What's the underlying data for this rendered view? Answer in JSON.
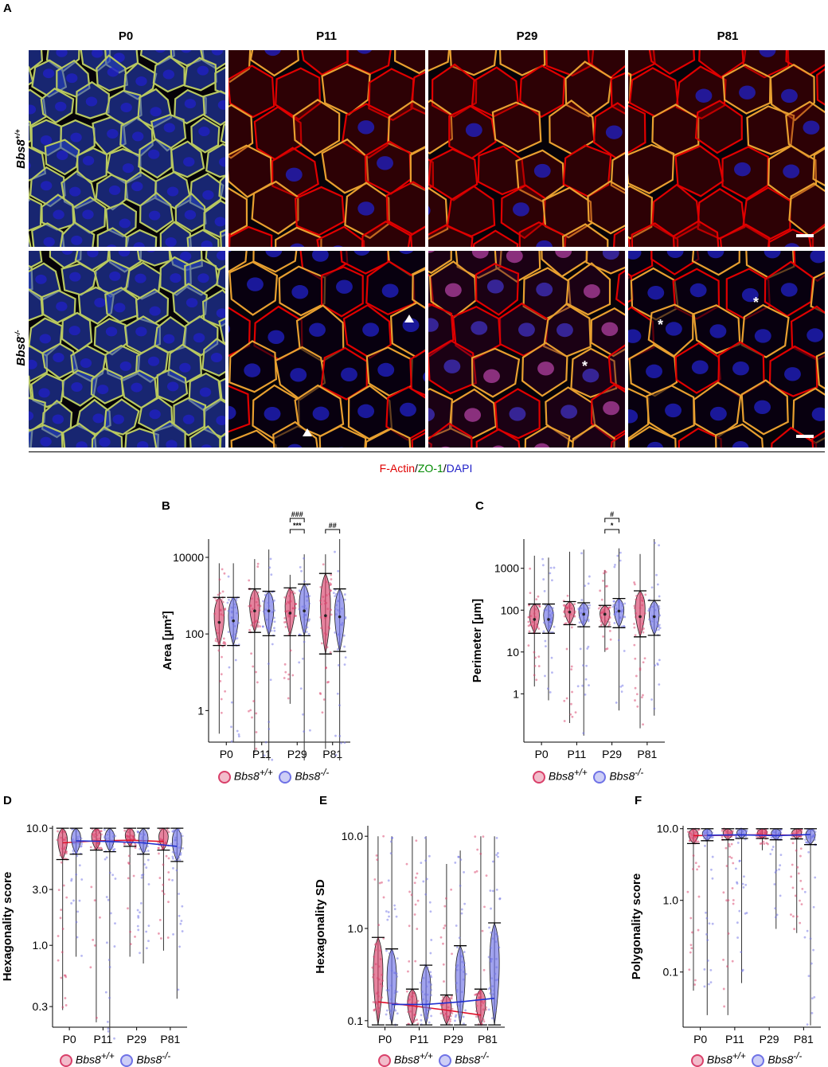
{
  "panel_a": {
    "letter": "A",
    "columns": [
      "P0",
      "P11",
      "P29",
      "P81"
    ],
    "rows": [
      {
        "base": "Bbs8",
        "sup": "+/+"
      },
      {
        "base": "Bbs8",
        "sup": "-/-"
      }
    ],
    "stain": {
      "part1": "F-Actin",
      "sep1": "/",
      "part2": "ZO-1",
      "sep2": "/",
      "part3": "DAPI"
    },
    "markers": {
      "arrowhead": "arrowhead-marker",
      "asterisk": "*"
    },
    "colors": {
      "factin": "#e00000",
      "zo1": "#008a00",
      "dapi": "#2020c8"
    }
  },
  "legend": {
    "wt": {
      "base": "Bbs8",
      "sup": "+/+",
      "color": "#d9406a"
    },
    "ko": {
      "base": "Bbs8",
      "sup": "-/-",
      "color": "#6f72e6"
    }
  },
  "chart_data": [
    {
      "panel": "B",
      "type": "violin",
      "ylabel": "Area [µm²]",
      "yscale": "log",
      "ylim": [
        0.15,
        30000
      ],
      "ytick_values": [
        1,
        100,
        10000
      ],
      "ytick_labels": [
        "1",
        "100",
        "10000"
      ],
      "categories": [
        "P0",
        "P11",
        "P29",
        "P81"
      ],
      "series": [
        {
          "name": "Bbs8+/+",
          "median": [
            200,
            400,
            350,
            300
          ],
          "q_low": [
            50,
            110,
            90,
            30
          ],
          "q_high": [
            900,
            1500,
            1600,
            3800
          ],
          "min": [
            0.25,
            0.08,
            1.5,
            0.1
          ],
          "max": [
            7000,
            9000,
            3500,
            12000
          ]
        },
        {
          "name": "Bbs8-/-",
          "median": [
            220,
            400,
            400,
            280
          ],
          "q_low": [
            50,
            90,
            90,
            35
          ],
          "q_high": [
            900,
            1300,
            2000,
            1500
          ],
          "min": [
            0.15,
            0.05,
            0.05,
            0.05
          ],
          "max": [
            7000,
            16000,
            12000,
            30000
          ]
        }
      ],
      "annotations": [
        {
          "category": "P29",
          "labels": [
            "###",
            "***"
          ]
        },
        {
          "category": "P81",
          "labels": [
            "##"
          ]
        }
      ]
    },
    {
      "panel": "C",
      "type": "violin",
      "ylabel": "Perimeter [µm]",
      "yscale": "log",
      "ylim": [
        0.07,
        5000
      ],
      "ytick_values": [
        1,
        10,
        100,
        1000
      ],
      "ytick_labels": [
        "1",
        "10",
        "100",
        "1000"
      ],
      "categories": [
        "P0",
        "P11",
        "P29",
        "P81"
      ],
      "series": [
        {
          "name": "Bbs8+/+",
          "median": [
            60,
            90,
            80,
            70
          ],
          "q_low": [
            28,
            45,
            40,
            23
          ],
          "q_high": [
            140,
            160,
            130,
            290
          ],
          "min": [
            1.5,
            0.2,
            10,
            0.15
          ],
          "max": [
            2000,
            2500,
            900,
            2200
          ]
        },
        {
          "name": "Bbs8-/-",
          "median": [
            60,
            80,
            95,
            70
          ],
          "q_low": [
            28,
            40,
            38,
            25
          ],
          "q_high": [
            140,
            150,
            190,
            170
          ],
          "min": [
            0.7,
            0.1,
            0.4,
            0.3
          ],
          "max": [
            1800,
            2800,
            3000,
            5000
          ]
        }
      ],
      "annotations": [
        {
          "category": "P29",
          "labels": [
            "#",
            "*"
          ]
        }
      ]
    },
    {
      "panel": "D",
      "type": "violin",
      "ylabel": "Hexagonality score",
      "yscale": "log",
      "ylim": [
        0.2,
        10.5
      ],
      "ytick_values": [
        0.3,
        1.0,
        3.0,
        10.0
      ],
      "ytick_labels": [
        "0.3",
        "1.0",
        "3.0",
        "10.0"
      ],
      "categories": [
        "P0",
        "P11",
        "P29",
        "P81"
      ],
      "series": [
        {
          "name": "Bbs8+/+",
          "mean_line": [
            7.5,
            7.8,
            7.9,
            7.7
          ],
          "q_low": [
            5.4,
            6.5,
            7.0,
            6.5
          ],
          "q_high": [
            10,
            10,
            10,
            10
          ],
          "min": [
            0.28,
            0.22,
            0.8,
            0.9
          ],
          "max": [
            10,
            10,
            10,
            10
          ]
        },
        {
          "name": "Bbs8-/-",
          "mean_line": [
            7.8,
            7.7,
            7.5,
            7.0
          ],
          "q_low": [
            6.0,
            6.3,
            6.0,
            5.2
          ],
          "q_high": [
            10,
            10,
            10,
            10
          ],
          "min": [
            0.8,
            0.15,
            0.7,
            0.35
          ],
          "max": [
            10,
            10,
            10,
            10
          ]
        }
      ]
    },
    {
      "panel": "E",
      "type": "violin",
      "ylabel": "Hexagonality SD",
      "yscale": "log",
      "ylim": [
        0.085,
        13
      ],
      "ytick_values": [
        0.1,
        1.0,
        10.0
      ],
      "ytick_labels": [
        "0.1",
        "1.0",
        "10.0"
      ],
      "categories": [
        "P0",
        "P11",
        "P29",
        "P81"
      ],
      "series": [
        {
          "name": "Bbs8+/+",
          "mean_line": [
            0.16,
            0.145,
            0.13,
            0.115
          ],
          "q_low": [
            0.09,
            0.09,
            0.09,
            0.09
          ],
          "q_high": [
            0.8,
            0.22,
            0.19,
            0.22
          ],
          "min": [
            0.09,
            0.09,
            0.09,
            0.09
          ],
          "max": [
            10,
            10,
            5,
            10
          ]
        },
        {
          "name": "Bbs8-/-",
          "mean_line": [
            0.15,
            0.15,
            0.16,
            0.175
          ],
          "q_low": [
            0.09,
            0.09,
            0.09,
            0.09
          ],
          "q_high": [
            0.6,
            0.4,
            0.65,
            1.15
          ],
          "min": [
            0.09,
            0.09,
            0.09,
            0.09
          ],
          "max": [
            10,
            10,
            7,
            10
          ]
        }
      ]
    },
    {
      "panel": "F",
      "type": "violin",
      "ylabel": "Polygonality score",
      "yscale": "log",
      "ylim": [
        0.017,
        11
      ],
      "ytick_values": [
        0.1,
        1.0,
        10.0
      ],
      "ytick_labels": [
        "0.1",
        "1.0",
        "10.0"
      ],
      "categories": [
        "P0",
        "P11",
        "P29",
        "P81"
      ],
      "series": [
        {
          "name": "Bbs8+/+",
          "mean_line": [
            8.0,
            8.1,
            8.2,
            8.1
          ],
          "q_low": [
            6.2,
            7.0,
            7.3,
            7.2
          ],
          "q_high": [
            10,
            10,
            10,
            10
          ],
          "min": [
            0.055,
            0.025,
            5,
            0.35
          ],
          "max": [
            10,
            10,
            10,
            10
          ]
        },
        {
          "name": "Bbs8-/-",
          "mean_line": [
            8.1,
            8.2,
            8.0,
            8.3
          ],
          "q_low": [
            6.8,
            7.3,
            7.0,
            6.0
          ],
          "q_high": [
            10,
            10,
            10,
            10
          ],
          "min": [
            0.025,
            0.07,
            0.4,
            0.018
          ],
          "max": [
            10,
            10,
            10,
            10
          ]
        }
      ]
    }
  ]
}
